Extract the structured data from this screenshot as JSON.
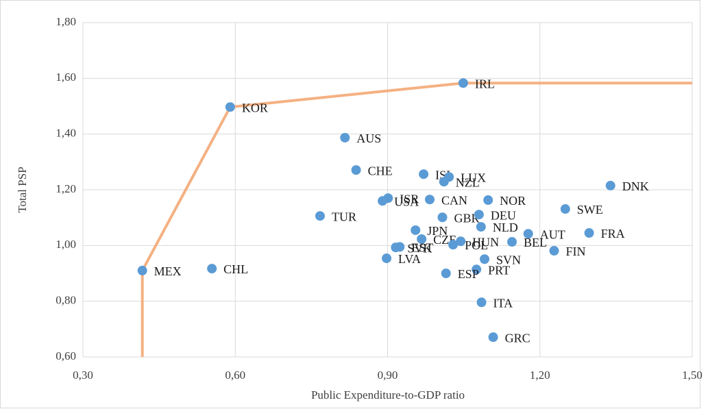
{
  "chart_data": {
    "type": "scatter",
    "x_label": "Public Expenditure-to-GDP ratio",
    "y_label": "Total PSP",
    "color": "#5b9bd5",
    "labels": [
      "MEX",
      "KOR",
      "IRL",
      "CHL",
      "AUS",
      "CHE",
      "TUR",
      "ISL",
      "LUX",
      "NZL",
      "DNK",
      "ISR",
      "USA",
      "CAN",
      "NOR",
      "SWE",
      "GBR",
      "DEU",
      "NLD",
      "JPN",
      "AUT",
      "FRA",
      "CZE",
      "HUN",
      "BEL",
      "SVK",
      "EST",
      "POL",
      "FIN",
      "LVA",
      "SVN",
      "PRT",
      "ESP",
      "ITA",
      "GRC"
    ],
    "x": [
      0.417,
      0.59,
      1.049,
      0.554,
      0.816,
      0.838,
      0.767,
      0.971,
      1.021,
      1.011,
      1.339,
      0.901,
      0.89,
      0.983,
      1.098,
      1.25,
      1.008,
      1.08,
      1.084,
      0.955,
      1.177,
      1.297,
      0.967,
      1.044,
      1.145,
      0.916,
      0.924,
      1.029,
      1.228,
      0.898,
      1.091,
      1.075,
      1.015,
      1.085,
      1.108
    ],
    "y": [
      0.91,
      1.497,
      1.583,
      0.917,
      1.387,
      1.271,
      1.106,
      1.256,
      1.246,
      1.229,
      1.215,
      1.17,
      1.16,
      1.165,
      1.163,
      1.131,
      1.101,
      1.111,
      1.067,
      1.055,
      1.042,
      1.045,
      1.023,
      1.015,
      1.013,
      0.993,
      0.995,
      1.003,
      0.981,
      0.954,
      0.951,
      0.914,
      0.9,
      0.796,
      0.671
    ],
    "frontier": {
      "color": "#f4b183",
      "x": [
        0.417,
        0.417,
        0.59,
        1.049,
        1.5
      ],
      "y": [
        0.6,
        0.91,
        1.497,
        1.583,
        1.583
      ]
    },
    "xlim": [
      0.3,
      1.5
    ],
    "ylim": [
      0.6,
      1.8
    ],
    "xticks": [
      {
        "value": 0.3,
        "label": "0,30"
      },
      {
        "value": 0.6,
        "label": "0,60"
      },
      {
        "value": 0.9,
        "label": "0,90"
      },
      {
        "value": 1.2,
        "label": "1,20"
      },
      {
        "value": 1.5,
        "label": "1,50"
      }
    ],
    "yticks": [
      {
        "value": 0.6,
        "label": "0,60"
      },
      {
        "value": 0.8,
        "label": "0,80"
      },
      {
        "value": 1.0,
        "label": "1,00"
      },
      {
        "value": 1.2,
        "label": "1,20"
      },
      {
        "value": 1.4,
        "label": "1,40"
      },
      {
        "value": 1.6,
        "label": "1,60"
      },
      {
        "value": 1.8,
        "label": "1,80"
      }
    ],
    "grid": true
  }
}
